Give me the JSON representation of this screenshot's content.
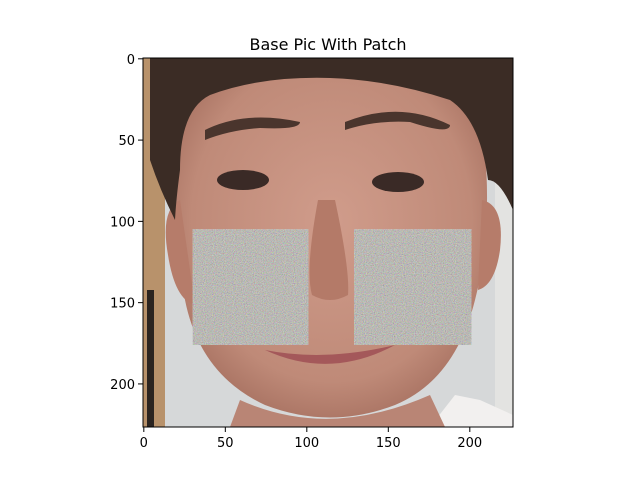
{
  "chart_data": {
    "type": "image",
    "title": "Base Pic With Patch",
    "xlabel": "",
    "ylabel": "",
    "image_size": [
      227,
      227
    ],
    "xlim": [
      -0.5,
      226.5
    ],
    "ylim": [
      226.5,
      -0.5
    ],
    "x_ticks": [
      0,
      50,
      100,
      150,
      200
    ],
    "y_ticks": [
      0,
      50,
      100,
      150,
      200
    ],
    "grid": false,
    "content": {
      "subject": "photo of a man's face",
      "patches": [
        {
          "name": "left-cheek-patch",
          "x_range": [
            30,
            101
          ],
          "y_range": [
            105,
            176
          ]
        },
        {
          "name": "right-cheek-patch",
          "x_range": [
            129,
            201
          ],
          "y_range": [
            105,
            176
          ]
        }
      ]
    }
  },
  "colors": {
    "background": "#c9a982",
    "wall": "#d7d8d9",
    "skin": "#c89382",
    "hair": "#3a2b25",
    "shirt": "#f2f0ef"
  }
}
